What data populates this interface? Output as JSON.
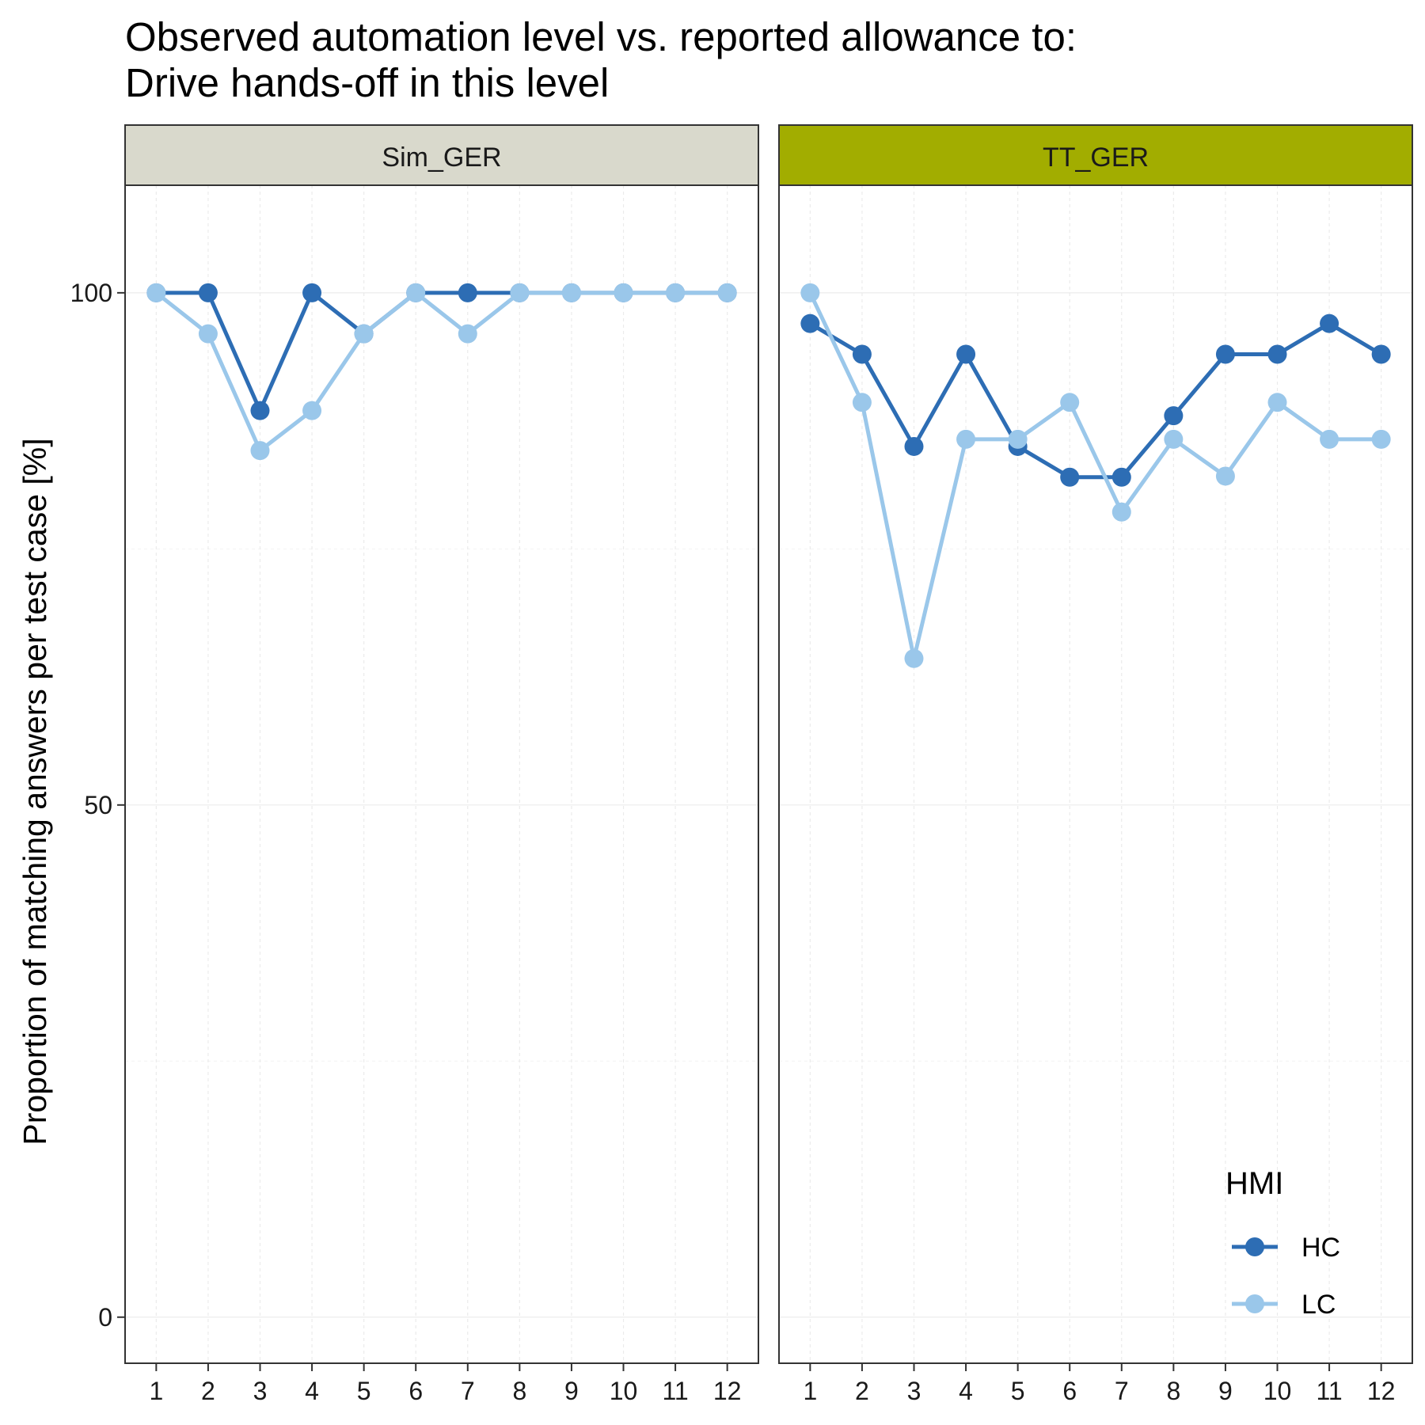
{
  "chart_data": {
    "type": "line",
    "title": [
      "Observed automation level vs. reported allowance to:",
      "Drive hands-off in this level"
    ],
    "ylabel": "Proportion of matching answers per test case [%]",
    "xlabel": "",
    "x": [
      1,
      2,
      3,
      4,
      5,
      6,
      7,
      8,
      9,
      10,
      11,
      12
    ],
    "ylim": [
      -4.5,
      110.5
    ],
    "yticks": [
      0,
      50,
      100
    ],
    "grid": true,
    "legend": {
      "title": "HMI",
      "placement": "bottom-right",
      "entries": [
        "HC",
        "LC"
      ]
    },
    "colors": {
      "HC": "#2d6db4",
      "LC": "#9ac7ea"
    },
    "panels": [
      {
        "name": "Sim_GER",
        "strip_color": "#d9d9cc",
        "series": [
          {
            "name": "HC",
            "values": [
              100,
              100,
              88.5,
              100,
              96,
              100,
              100,
              100,
              100,
              100,
              100,
              100
            ]
          },
          {
            "name": "LC",
            "values": [
              100,
              96,
              84.6,
              88.5,
              96,
              100,
              96,
              100,
              100,
              100,
              100,
              100
            ]
          }
        ]
      },
      {
        "name": "TT_GER",
        "strip_color": "#a2ad00",
        "series": [
          {
            "name": "HC",
            "values": [
              97,
              94,
              85,
              94,
              85,
              82,
              82,
              88,
              94,
              94,
              97,
              94
            ]
          },
          {
            "name": "LC",
            "values": [
              100,
              89.3,
              64.3,
              85.7,
              85.7,
              89.3,
              78.6,
              85.7,
              82.1,
              89.3,
              85.7,
              85.7
            ]
          }
        ]
      }
    ]
  }
}
